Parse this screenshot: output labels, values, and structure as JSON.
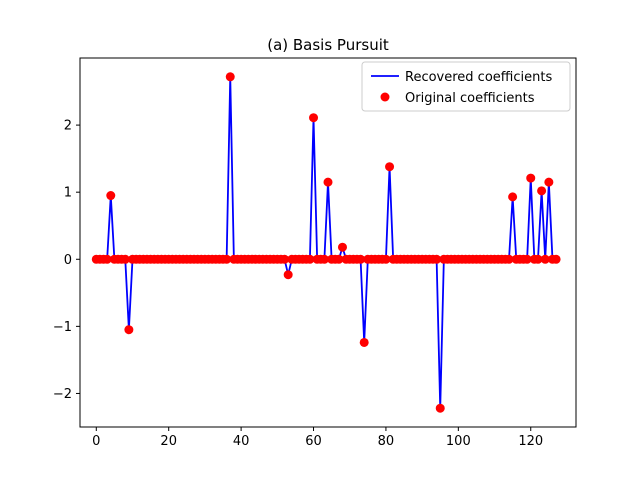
{
  "chart_data": {
    "type": "line",
    "title": "(a) Basis Pursuit",
    "xlabel": "",
    "ylabel": "",
    "xlim": [
      -4.5,
      132.5
    ],
    "ylim": [
      -2.5,
      3.0
    ],
    "xticks": [
      0,
      20,
      40,
      60,
      80,
      100,
      120
    ],
    "yticks": [
      -2,
      -1,
      0,
      1,
      2
    ],
    "ytick_labels": [
      "−2",
      "−1",
      "0",
      "1",
      "2"
    ],
    "grid": false,
    "legend_position": "top-right",
    "n_points": 128,
    "nonzero": [
      {
        "x": 4,
        "y": 0.95
      },
      {
        "x": 9,
        "y": -1.05
      },
      {
        "x": 37,
        "y": 2.72
      },
      {
        "x": 53,
        "y": -0.23
      },
      {
        "x": 60,
        "y": 2.11
      },
      {
        "x": 64,
        "y": 1.15
      },
      {
        "x": 68,
        "y": 0.18
      },
      {
        "x": 74,
        "y": -1.24
      },
      {
        "x": 81,
        "y": 1.38
      },
      {
        "x": 95,
        "y": -2.22
      },
      {
        "x": 115,
        "y": 0.93
      },
      {
        "x": 120,
        "y": 1.21
      },
      {
        "x": 123,
        "y": 1.02
      },
      {
        "x": 125,
        "y": 1.15
      }
    ],
    "series": [
      {
        "name": "Recovered coefficients",
        "style": "line",
        "color": "#0000ff"
      },
      {
        "name": "Original coefficients",
        "style": "markers",
        "color": "#ff0000"
      }
    ]
  }
}
